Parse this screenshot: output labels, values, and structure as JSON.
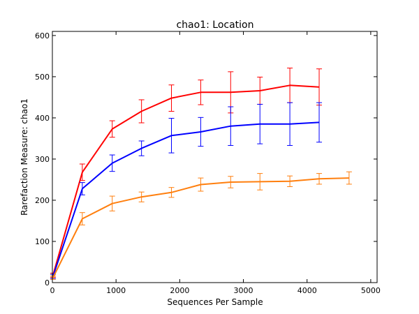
{
  "chart_data": {
    "type": "line",
    "title": "chao1: Location",
    "xlabel": "Sequences Per Sample",
    "ylabel": "Rarefaction Measure: chao1",
    "xlim": [
      0,
      5100
    ],
    "ylim": [
      0,
      610
    ],
    "xticks": [
      0,
      1000,
      2000,
      3000,
      4000,
      5000
    ],
    "yticks": [
      0,
      100,
      200,
      300,
      400,
      500,
      600
    ],
    "grid": false,
    "legend": "none",
    "series": [
      {
        "color": "#ff0000",
        "x": [
          10,
          470,
          940,
          1400,
          1870,
          2330,
          2800,
          3260,
          3730,
          4190
        ],
        "y": [
          18,
          268,
          373,
          416,
          448,
          462,
          462,
          466,
          479,
          475
        ],
        "err": [
          5,
          20,
          20,
          28,
          32,
          30,
          50,
          33,
          42,
          44
        ]
      },
      {
        "color": "#0000ff",
        "x": [
          10,
          470,
          940,
          1400,
          1870,
          2330,
          2800,
          3260,
          3730,
          4190
        ],
        "y": [
          15,
          228,
          290,
          326,
          357,
          366,
          380,
          385,
          385,
          389
        ],
        "err": [
          5,
          15,
          20,
          18,
          42,
          35,
          47,
          48,
          52,
          48
        ]
      },
      {
        "color": "#ff7f0e",
        "x": [
          10,
          470,
          940,
          1400,
          1870,
          2330,
          2800,
          3260,
          3730,
          4190,
          4660
        ],
        "y": [
          12,
          155,
          192,
          208,
          219,
          238,
          244,
          245,
          246,
          252,
          254
        ],
        "err": [
          4,
          15,
          18,
          12,
          12,
          16,
          14,
          20,
          13,
          13,
          15
        ]
      }
    ]
  }
}
